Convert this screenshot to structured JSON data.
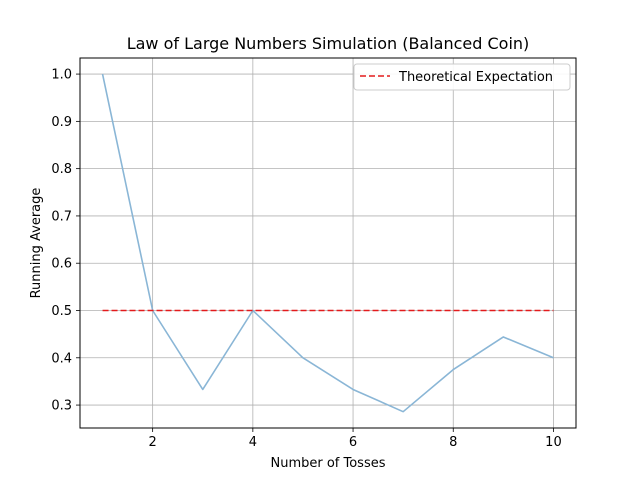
{
  "chart_data": {
    "type": "line",
    "title": "Law of Large Numbers Simulation (Balanced Coin)",
    "xlabel": "Number of Tosses",
    "ylabel": "Running Average",
    "xlim": [
      0.55,
      10.45
    ],
    "ylim": [
      0.2515,
      1.034
    ],
    "xticks": [
      2,
      4,
      6,
      8,
      10
    ],
    "xtick_labels": [
      "2",
      "4",
      "6",
      "8",
      "10"
    ],
    "yticks": [
      0.3,
      0.4,
      0.5,
      0.6,
      0.7,
      0.8,
      0.9,
      1.0
    ],
    "ytick_labels": [
      "0.3",
      "0.4",
      "0.5",
      "0.6",
      "0.7",
      "0.8",
      "0.9",
      "1.0"
    ],
    "grid": true,
    "legend_position": "top-right",
    "series": [
      {
        "x": [
          1,
          2,
          3,
          4,
          5,
          6,
          7,
          8,
          9,
          10
        ],
        "values": [
          1.0,
          0.5,
          0.333,
          0.5,
          0.4,
          0.333,
          0.286,
          0.375,
          0.444,
          0.4
        ],
        "color": "#8ab6d6",
        "style": "solid"
      },
      {
        "name": "Theoretical Expectation",
        "x": [
          1,
          10
        ],
        "values": [
          0.5,
          0.5
        ],
        "color": "#e41a1c",
        "style": "dashed"
      }
    ]
  }
}
